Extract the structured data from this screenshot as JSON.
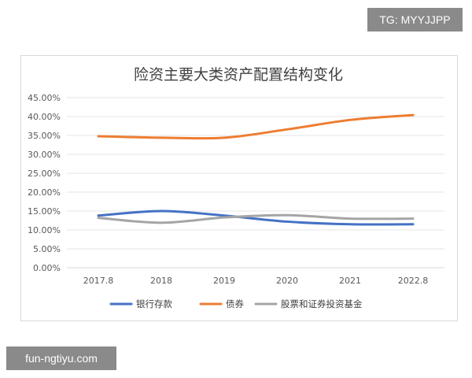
{
  "watermarks": {
    "top_right": "TG: MYYJJPP",
    "bottom_left": "fun-ngtiyu.com"
  },
  "chart_data": {
    "type": "line",
    "title": "险资主要大类资产配置结构变化",
    "xlabel": "",
    "ylabel": "",
    "categories": [
      "2017.8",
      "2018",
      "2019",
      "2020",
      "2021",
      "2022.8"
    ],
    "yticks": [
      "0.00%",
      "5.00%",
      "10.00%",
      "15.00%",
      "20.00%",
      "25.00%",
      "30.00%",
      "35.00%",
      "40.00%",
      "45.00%"
    ],
    "ylim": [
      0,
      45
    ],
    "grid": true,
    "legend_position": "bottom",
    "series": [
      {
        "name": "银行存款",
        "color": "#4472c4",
        "values": [
          13.8,
          15.0,
          13.8,
          12.2,
          11.5,
          11.5
        ]
      },
      {
        "name": "债券",
        "color": "#ed7d31",
        "values": [
          34.8,
          34.4,
          34.4,
          36.6,
          39.1,
          40.4
        ]
      },
      {
        "name": "股票和证券投资基金",
        "color": "#a5a5a5",
        "values": [
          13.2,
          11.9,
          13.3,
          13.9,
          13.0,
          13.0
        ]
      }
    ]
  }
}
